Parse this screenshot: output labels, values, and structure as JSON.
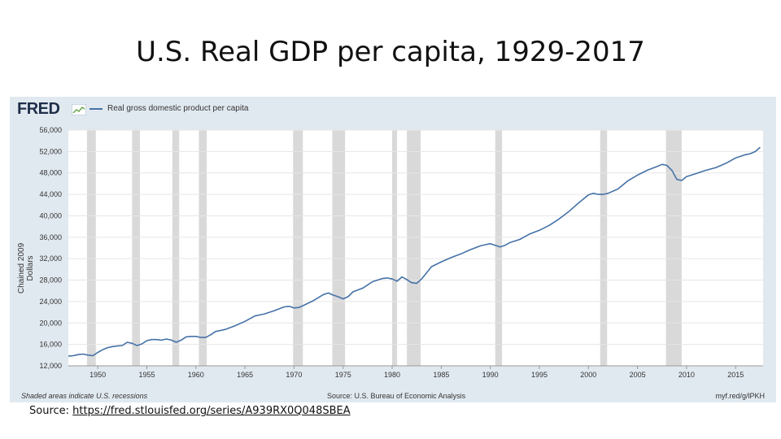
{
  "slide": {
    "title": "U.S. Real GDP per capita, 1929-2017",
    "source_prefix": "Source: ",
    "source_link": "https://fred.stlouisfed.org/series/A939RX0Q048SBEA"
  },
  "fred": {
    "logo": "FRED",
    "legend": "Real gross domestic product per capita",
    "footer_left": "Shaded areas indicate U.S. recessions",
    "footer_mid": "Source: U.S. Bureau of Economic Analysis",
    "footer_right": "myf.red/g/lPKH",
    "line_color": "#4572a7",
    "recession_color": "#d9d9d9"
  },
  "chart_data": {
    "type": "line",
    "title": "",
    "xlabel": "",
    "ylabel": "Chained 2009 Dollars",
    "xlim": [
      1947,
      2017.8
    ],
    "ylim": [
      12000,
      56000
    ],
    "yticks": [
      12000,
      16000,
      20000,
      24000,
      28000,
      32000,
      36000,
      40000,
      44000,
      48000,
      52000,
      56000
    ],
    "ytick_labels": [
      "12,000",
      "16,000",
      "20,000",
      "24,000",
      "28,000",
      "32,000",
      "36,000",
      "40,000",
      "44,000",
      "48,000",
      "52,000",
      "56,000"
    ],
    "xticks": [
      1950,
      1955,
      1960,
      1965,
      1970,
      1975,
      1980,
      1985,
      1990,
      1995,
      2000,
      2005,
      2010,
      2015
    ],
    "grid": true,
    "recessions": [
      [
        1948.9,
        1949.8
      ],
      [
        1953.5,
        1954.3
      ],
      [
        1957.6,
        1958.3
      ],
      [
        1960.3,
        1961.1
      ],
      [
        1969.9,
        1970.9
      ],
      [
        1973.9,
        1975.2
      ],
      [
        1980.0,
        1980.5
      ],
      [
        1981.5,
        1982.9
      ],
      [
        1990.5,
        1991.2
      ],
      [
        2001.2,
        2001.9
      ],
      [
        2007.9,
        2009.5
      ]
    ],
    "series": [
      {
        "name": "Real gross domestic product per capita",
        "x": [
          1947.0,
          1947.5,
          1948.0,
          1948.5,
          1949.0,
          1949.5,
          1950.0,
          1950.5,
          1951.0,
          1951.5,
          1952.0,
          1952.5,
          1953.0,
          1953.5,
          1954.0,
          1954.5,
          1955.0,
          1955.5,
          1956.0,
          1956.5,
          1957.0,
          1957.5,
          1958.0,
          1958.5,
          1959.0,
          1959.5,
          1960.0,
          1960.5,
          1961.0,
          1961.5,
          1962.0,
          1963.0,
          1964.0,
          1965.0,
          1966.0,
          1966.5,
          1967.0,
          1968.0,
          1969.0,
          1969.5,
          1970.0,
          1970.5,
          1971.0,
          1972.0,
          1973.0,
          1973.5,
          1974.0,
          1974.5,
          1975.0,
          1975.5,
          1976.0,
          1977.0,
          1978.0,
          1979.0,
          1979.5,
          1980.0,
          1980.5,
          1981.0,
          1981.5,
          1982.0,
          1982.5,
          1983.0,
          1984.0,
          1985.0,
          1986.0,
          1987.0,
          1988.0,
          1989.0,
          1989.5,
          1990.0,
          1990.5,
          1991.0,
          1991.5,
          1992.0,
          1993.0,
          1994.0,
          1995.0,
          1996.0,
          1997.0,
          1998.0,
          1999.0,
          2000.0,
          2000.5,
          2001.0,
          2001.5,
          2002.0,
          2003.0,
          2004.0,
          2005.0,
          2006.0,
          2007.0,
          2007.5,
          2008.0,
          2008.5,
          2009.0,
          2009.5,
          2010.0,
          2011.0,
          2012.0,
          2013.0,
          2014.0,
          2015.0,
          2016.0,
          2016.5,
          2017.0,
          2017.5
        ],
        "values": [
          13800,
          13900,
          14100,
          14200,
          14000,
          13900,
          14500,
          15000,
          15400,
          15600,
          15700,
          15800,
          16400,
          16200,
          15800,
          16100,
          16700,
          16900,
          16900,
          16800,
          17000,
          16800,
          16400,
          16800,
          17400,
          17500,
          17500,
          17300,
          17300,
          17800,
          18400,
          18800,
          19500,
          20300,
          21300,
          21500,
          21700,
          22300,
          23000,
          23100,
          22800,
          22900,
          23300,
          24200,
          25300,
          25600,
          25200,
          24900,
          24500,
          24900,
          25800,
          26500,
          27700,
          28300,
          28400,
          28200,
          27800,
          28600,
          28100,
          27500,
          27400,
          28200,
          30500,
          31400,
          32200,
          32900,
          33700,
          34400,
          34600,
          34800,
          34500,
          34200,
          34500,
          35000,
          35600,
          36600,
          37300,
          38200,
          39400,
          40800,
          42400,
          43900,
          44200,
          44000,
          44000,
          44200,
          45000,
          46500,
          47600,
          48500,
          49200,
          49600,
          49400,
          48500,
          46800,
          46600,
          47300,
          47900,
          48500,
          49000,
          49800,
          50800,
          51400,
          51600,
          52000,
          52800
        ]
      }
    ]
  }
}
